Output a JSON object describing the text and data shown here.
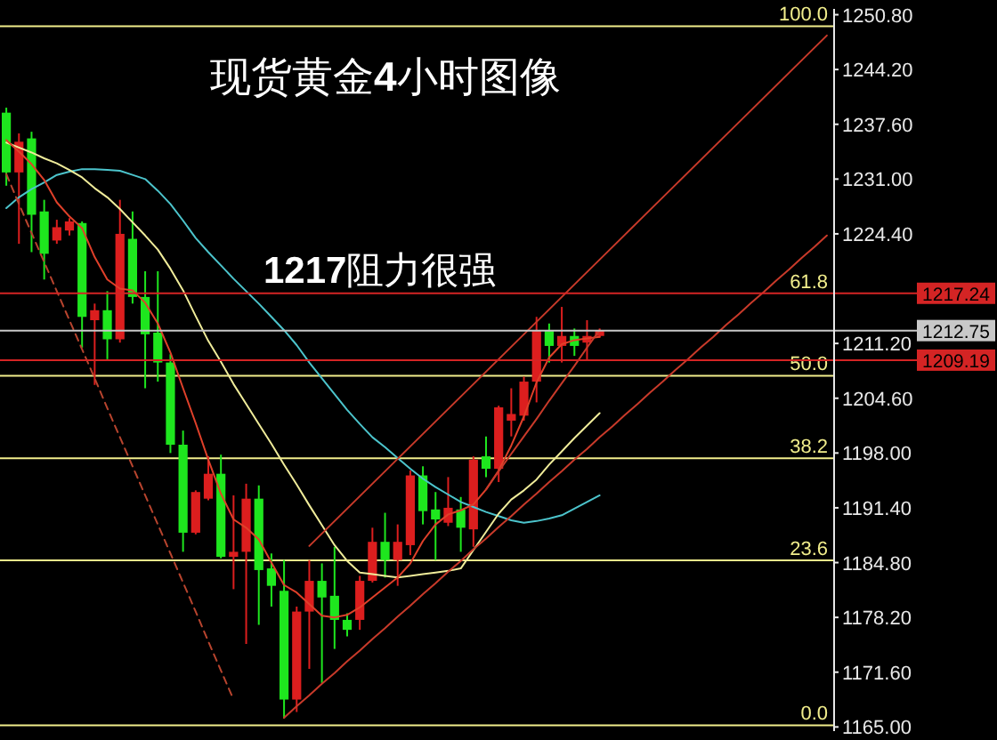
{
  "chart_data": {
    "type": "candlestick",
    "title": "现货黄金4小时图像",
    "annotations": [
      {
        "text": "1217阻力很强",
        "y": 1217.24
      },
      {
        "text": "61.8",
        "y": 1217.24
      }
    ],
    "categories": [
      null,
      null,
      null,
      null,
      null,
      null,
      null,
      null,
      null,
      null,
      null,
      null,
      null,
      null,
      null,
      null,
      null,
      null,
      null,
      null,
      null,
      null,
      null,
      null,
      null,
      null,
      null,
      null,
      null,
      null,
      null,
      null,
      null,
      null,
      null,
      null,
      null,
      null,
      null,
      null,
      null,
      null,
      null,
      null,
      null,
      null,
      null,
      null,
      null,
      null,
      null,
      null,
      null,
      null,
      null,
      null,
      null,
      null,
      null,
      null,
      null,
      null,
      null,
      null,
      null,
      null
    ],
    "ohlc": [
      [
        1239.0,
        1239.6,
        1230.2,
        1231.8
      ],
      [
        1231.8,
        1236.5,
        1223.2,
        1235.5
      ],
      [
        1235.9,
        1236.7,
        1222.2,
        1226.7
      ],
      [
        1227.1,
        1228.5,
        1218.9,
        1222.0
      ],
      [
        1223.6,
        1226.1,
        1223.2,
        1225.2
      ],
      [
        1224.8,
        1226.3,
        1224.2,
        1225.9
      ],
      [
        1225.7,
        1225.9,
        1210.7,
        1214.4
      ],
      [
        1214.0,
        1216.0,
        1206.2,
        1215.2
      ],
      [
        1215.2,
        1217.5,
        1209.3,
        1211.7
      ],
      [
        1211.7,
        1228.5,
        1211.3,
        1224.4
      ],
      [
        1223.8,
        1227.1,
        1216.0,
        1216.8
      ],
      [
        1216.8,
        1219.9,
        1205.8,
        1212.3
      ],
      [
        1212.5,
        1219.9,
        1206.6,
        1208.9
      ],
      [
        1208.9,
        1209.9,
        1198.0,
        1199.0
      ],
      [
        1199.0,
        1200.7,
        1186.1,
        1188.4
      ],
      [
        1188.4,
        1193.5,
        1188.2,
        1193.3
      ],
      [
        1192.5,
        1197.6,
        1192.3,
        1195.5
      ],
      [
        1195.5,
        1197.8,
        1185.3,
        1185.5
      ],
      [
        1185.5,
        1192.9,
        1181.6,
        1186.1
      ],
      [
        1186.1,
        1194.3,
        1175.0,
        1192.5
      ],
      [
        1192.5,
        1194.1,
        1177.3,
        1183.9
      ],
      [
        1184.1,
        1185.9,
        1179.5,
        1182.0
      ],
      [
        1181.4,
        1185.1,
        1166.0,
        1168.3
      ],
      [
        1168.3,
        1179.5,
        1166.8,
        1178.9
      ],
      [
        1178.9,
        1185.1,
        1172.0,
        1182.6
      ],
      [
        1182.6,
        1184.7,
        1170.3,
        1180.6
      ],
      [
        1180.8,
        1186.7,
        1174.4,
        1177.9
      ],
      [
        1177.9,
        1178.7,
        1175.9,
        1176.7
      ],
      [
        1177.9,
        1183.2,
        1176.7,
        1182.6
      ],
      [
        1182.6,
        1189.0,
        1182.4,
        1187.3
      ],
      [
        1187.3,
        1190.8,
        1183.0,
        1185.1
      ],
      [
        1185.1,
        1189.4,
        1182.0,
        1187.3
      ],
      [
        1186.9,
        1195.9,
        1185.7,
        1195.3
      ],
      [
        1195.3,
        1196.4,
        1189.4,
        1191.0
      ],
      [
        1191.2,
        1193.3,
        1185.1,
        1190.0
      ],
      [
        1189.6,
        1195.1,
        1189.2,
        1191.4
      ],
      [
        1191.2,
        1192.7,
        1186.1,
        1189.0
      ],
      [
        1188.8,
        1197.6,
        1186.7,
        1197.2
      ],
      [
        1197.6,
        1200.0,
        1195.1,
        1196.1
      ],
      [
        1196.1,
        1203.7,
        1194.5,
        1203.5
      ],
      [
        1201.9,
        1205.8,
        1200.0,
        1202.7
      ],
      [
        1202.5,
        1207.2,
        1201.9,
        1206.6
      ],
      [
        1206.6,
        1214.4,
        1204.1,
        1212.7
      ],
      [
        1212.7,
        1213.6,
        1208.9,
        1210.9
      ],
      [
        1210.9,
        1215.6,
        1208.9,
        1212.1
      ],
      [
        1212.1,
        1213.0,
        1209.7,
        1210.9
      ],
      [
        1211.3,
        1214.0,
        1209.1,
        1212.1
      ],
      [
        1212.1,
        1213.0,
        1211.9,
        1212.75
      ],
      null,
      null,
      null,
      null,
      null,
      null,
      null,
      null,
      null,
      null,
      null,
      null,
      null,
      null,
      null,
      null,
      null,
      null
    ],
    "colors": [
      "#1ee61e",
      "#dc1e1e",
      "#1ee61e",
      "#1ee61e",
      "#dc1e1e",
      "#dc1e1e",
      "#1ee61e",
      "#dc1e1e",
      "#1ee61e",
      "#dc1e1e",
      "#1ee61e",
      "#1ee61e",
      "#1ee61e",
      "#1ee61e",
      "#1ee61e",
      "#dc1e1e",
      "#dc1e1e",
      "#1ee61e",
      "#dc1e1e",
      "#dc1e1e",
      "#1ee61e",
      "#1ee61e",
      "#1ee61e",
      "#dc1e1e",
      "#dc1e1e",
      "#1ee61e",
      "#1ee61e",
      "#1ee61e",
      "#dc1e1e",
      "#dc1e1e",
      "#1ee61e",
      "#dc1e1e",
      "#dc1e1e",
      "#1ee61e",
      "#1ee61e",
      "#dc1e1e",
      "#1ee61e",
      "#dc1e1e",
      "#1ee61e",
      "#dc1e1e",
      "#dc1e1e",
      "#dc1e1e",
      "#dc1e1e",
      "#1ee61e",
      "#dc1e1e",
      "#1ee61e",
      "#dc1e1e",
      "#dc1e1e",
      null,
      null,
      null,
      null,
      null,
      null,
      null,
      null,
      null,
      null,
      null,
      null,
      null,
      null,
      null,
      null,
      null,
      null
    ],
    "series": [
      {
        "type": "line",
        "color": "#4cc4cc",
        "values": [
          1227.5,
          1228.8,
          1229.8,
          1230.6,
          1231.5,
          1231.9,
          1232.2,
          1232.2,
          1232.1,
          1232.0,
          1231.5,
          1231.0,
          1229.6,
          1228.0,
          1226.0,
          1223.9,
          1222.2,
          1220.6,
          1219.0,
          1217.5,
          1216.0,
          1214.4,
          1212.8,
          1211.0,
          1208.9,
          1207.0,
          1205.1,
          1203.2,
          1201.5,
          1199.9,
          1198.7,
          1197.4,
          1196.1,
          1194.9,
          1193.9,
          1193.0,
          1192.1,
          1191.5,
          1190.9,
          1190.4,
          1189.9,
          1189.6,
          1189.8,
          1190.1,
          1190.5,
          1191.3,
          1192.1,
          1192.9,
          null,
          null,
          null,
          null,
          null,
          null,
          null,
          null,
          null,
          null,
          null,
          null,
          null,
          null,
          null,
          null,
          null,
          null
        ]
      },
      {
        "type": "line",
        "color": "#f0ec9a",
        "values": [
          1235.4,
          1234.8,
          1234.2,
          1233.5,
          1232.9,
          1232.1,
          1231.2,
          1229.9,
          1228.8,
          1227.4,
          1225.8,
          1224.2,
          1222.5,
          1220.2,
          1217.6,
          1214.5,
          1211.5,
          1209.0,
          1206.3,
          1203.9,
          1201.5,
          1199.1,
          1196.6,
          1194.2,
          1191.7,
          1189.3,
          1186.9,
          1185.0,
          1183.6,
          1183.4,
          1183.2,
          1183.0,
          1183.2,
          1183.4,
          1183.6,
          1183.8,
          1184.1,
          1186.3,
          1188.5,
          1190.7,
          1192.4,
          1193.5,
          1194.8,
          1196.6,
          1198.2,
          1199.8,
          1201.3,
          1202.8,
          null,
          null,
          null,
          null,
          null,
          null,
          null,
          null,
          null,
          null,
          null,
          null,
          null,
          null,
          null,
          null,
          null,
          null
        ]
      },
      {
        "type": "line",
        "color": "#e0402a",
        "values": [
          1235.7,
          1234.3,
          1232.8,
          1230.9,
          1228.2,
          1226.5,
          1225.1,
          1221.6,
          1218.9,
          1217.8,
          1217.6,
          1216.1,
          1213.6,
          1210.1,
          1205.8,
          1201.6,
          1197.2,
          1193.1,
          1190.0,
          1189.0,
          1187.6,
          1184.8,
          1182.1,
          1181.2,
          1179.8,
          1178.4,
          1178.2,
          1178.5,
          1179.4,
          1180.6,
          1181.8,
          1183.0,
          1184.7,
          1187.4,
          1189.4,
          1190.6,
          1191.1,
          1191.8,
          1193.6,
          1195.9,
          1198.9,
          1202.4,
          1206.5,
          1209.5,
          1211.1,
          1211.6,
          1211.8,
          1212.0,
          null,
          null,
          null,
          null,
          null,
          null,
          null,
          null,
          null,
          null,
          null,
          null,
          null,
          null,
          null,
          null,
          null,
          null
        ]
      },
      {
        "type": "line",
        "color": "#b8442e",
        "line_style": "dashed",
        "values": [
          1231.6,
          1228.0,
          1224.5,
          1221.0,
          1217.5,
          1214.0,
          1210.5,
          1207.0,
          1203.4,
          1199.9,
          1196.4,
          1192.9,
          1189.4,
          1185.9,
          1182.4,
          1178.9,
          1175.3,
          1171.8,
          1168.3,
          null,
          null,
          null,
          null,
          null,
          null,
          null,
          null,
          null,
          null,
          null,
          null,
          null,
          null,
          null,
          null,
          null,
          null,
          null,
          null,
          null,
          null,
          null,
          null,
          null,
          null,
          null,
          null,
          null,
          null,
          null,
          null,
          null,
          null,
          null,
          null,
          null,
          null,
          null,
          null,
          null,
          null,
          null,
          null,
          null,
          null,
          null
        ]
      },
      {
        "type": "line",
        "color": "#c83a2a",
        "values": [
          null,
          null,
          null,
          null,
          null,
          null,
          null,
          null,
          null,
          null,
          null,
          null,
          null,
          null,
          null,
          null,
          null,
          null,
          null,
          null,
          null,
          null,
          null,
          null,
          1186.8,
          1188.3,
          1189.8,
          1191.3,
          1192.8,
          1194.3,
          1195.8,
          1197.3,
          1198.8,
          1200.3,
          1201.8,
          1203.3,
          1204.8,
          1206.3,
          1207.8,
          1209.3,
          1210.8,
          1212.3,
          1213.8,
          1215.3,
          1216.8,
          1218.3,
          1219.8,
          1221.3,
          1222.8,
          1224.3,
          1225.8,
          1227.3,
          1228.8,
          1230.3,
          1231.8,
          1233.3,
          1234.8,
          1236.3,
          1237.8,
          1239.3,
          1240.8,
          1242.3,
          1243.8,
          1245.3,
          1246.8,
          1248.3
        ]
      },
      {
        "type": "line",
        "color": "#c83a2a",
        "values": [
          null,
          null,
          null,
          null,
          null,
          null,
          null,
          null,
          null,
          null,
          null,
          null,
          null,
          null,
          null,
          null,
          null,
          null,
          null,
          null,
          null,
          null,
          1166.1,
          1167.5,
          1168.8,
          1170.2,
          1171.5,
          1172.9,
          1174.2,
          1175.6,
          1176.9,
          1178.3,
          1179.6,
          1181.0,
          1182.3,
          1183.7,
          1185.0,
          1186.4,
          1187.7,
          1189.1,
          1190.4,
          1191.8,
          1193.1,
          1194.5,
          1195.8,
          1197.2,
          1198.5,
          1199.9,
          1201.2,
          1202.6,
          1203.9,
          1205.3,
          1206.6,
          1208.0,
          1209.3,
          1210.7,
          1212.0,
          1213.4,
          1214.7,
          1216.1,
          1217.4,
          1218.8,
          1220.1,
          1221.5,
          1222.8,
          1224.2
        ]
      },
      {
        "type": "line",
        "color": "#c83a2a",
        "values": [
          null,
          null,
          null,
          null,
          null,
          null,
          null,
          null,
          null,
          null,
          null,
          null,
          null,
          null,
          null,
          null,
          null,
          null,
          null,
          null,
          null,
          null,
          null,
          null,
          null,
          null,
          null,
          null,
          null,
          null,
          null,
          null,
          null,
          null,
          null,
          null,
          null,
          null,
          1193.6,
          1195.8,
          1197.9,
          1200.0,
          1202.1,
          1204.3,
          1206.4,
          1208.5,
          1210.7,
          1212.8,
          null,
          null,
          null,
          null,
          null,
          null,
          null,
          null,
          null,
          null,
          null,
          null,
          null,
          null,
          null,
          null,
          null,
          null
        ]
      }
    ],
    "ref_lines": [
      {
        "axis": "y2",
        "value": 100.0,
        "label": "100.0",
        "color": "#f2ee8c"
      },
      {
        "axis": "y2",
        "value": 50.0,
        "label": "50.0",
        "color": "#f2ee8c"
      },
      {
        "axis": "y2",
        "value": 38.2,
        "label": "38.2",
        "color": "#f2ee8c"
      },
      {
        "axis": "y2",
        "value": 23.6,
        "label": "23.6",
        "color": "#f2ee8c"
      },
      {
        "axis": "y2",
        "value": 0.0,
        "label": "0.0",
        "color": "#f2ee8c"
      },
      {
        "axis": "y",
        "value": 1212.75,
        "label": "1212.75",
        "color": "#c8c8c8"
      },
      {
        "axis": "y",
        "value": 1217.24,
        "label": "1217.24",
        "color": "#d42424"
      },
      {
        "axis": "y",
        "value": 1209.19,
        "label": "1209.19",
        "color": "#d42424"
      }
    ],
    "ylim": [
      1164.5,
      1251.5
    ],
    "yticks": [
      {
        "value": 1165,
        "label": "1165.00"
      },
      {
        "value": 1171.6,
        "label": "1171.60"
      },
      {
        "value": 1178.2,
        "label": "1178.20"
      },
      {
        "value": 1184.8,
        "label": "1184.80"
      },
      {
        "value": 1191.4,
        "label": "1191.40"
      },
      {
        "value": 1198,
        "label": "1198.00"
      },
      {
        "value": 1204.6,
        "label": "1204.60"
      },
      {
        "value": 1211.2,
        "label": "1211.20"
      },
      {
        "value": 1224.4,
        "label": "1224.40"
      },
      {
        "value": 1231,
        "label": "1231.00"
      },
      {
        "value": 1237.6,
        "label": "1237.60"
      },
      {
        "value": 1244.2,
        "label": "1244.20"
      },
      {
        "value": 1250.8,
        "label": "1250.80"
      }
    ],
    "y2lim": [
      -0.83,
      102.48
    ],
    "tick_labels": "y"
  }
}
